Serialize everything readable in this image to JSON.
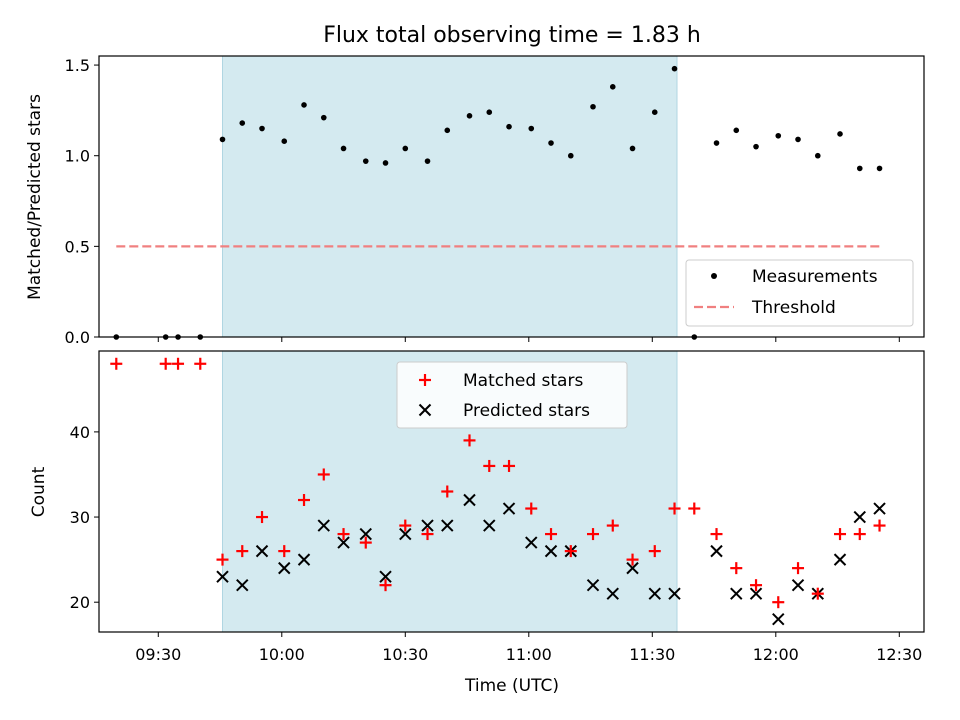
{
  "colors": {
    "shade": "#d4eaf0",
    "measurement": "#000000",
    "threshold": "#f08080",
    "matched": "#ff0000",
    "predicted": "#000000"
  },
  "chart_data": [
    {
      "type": "scatter",
      "title": "Flux total observing time = 1.83 h",
      "xlabel": "",
      "ylabel": "Matched/Predicted stars",
      "xlim": [
        9.26,
        12.6
      ],
      "ylim": [
        0.0,
        1.55
      ],
      "yticks": [
        0.0,
        0.5,
        1.0,
        1.5
      ],
      "ytick_labels": [
        "0.0",
        "0.5",
        "1.0",
        "1.5"
      ],
      "shaded_span": [
        9.76,
        11.6
      ],
      "threshold": {
        "name": "Threshold",
        "value": 0.5,
        "x_range": [
          9.33,
          12.42
        ]
      },
      "legend": {
        "location": "lower right",
        "entries": [
          "Measurements",
          "Threshold"
        ]
      },
      "series": [
        {
          "name": "Measurements",
          "x": [
            9.33,
            9.53,
            9.58,
            9.67,
            9.76,
            9.84,
            9.92,
            10.01,
            10.09,
            10.17,
            10.25,
            10.34,
            10.42,
            10.5,
            10.59,
            10.67,
            10.76,
            10.84,
            10.92,
            11.01,
            11.09,
            11.17,
            11.26,
            11.34,
            11.42,
            11.51,
            11.59,
            11.67,
            11.76,
            11.84,
            11.92,
            12.01,
            12.09,
            12.17,
            12.26,
            12.34,
            12.42
          ],
          "y": [
            0.0,
            0.0,
            0.0,
            0.0,
            1.09,
            1.18,
            1.15,
            1.08,
            1.28,
            1.21,
            1.04,
            0.97,
            0.96,
            1.04,
            0.97,
            1.14,
            1.22,
            1.24,
            1.16,
            1.15,
            1.07,
            1.0,
            1.27,
            1.38,
            1.04,
            1.24,
            1.48,
            0.0,
            1.07,
            1.14,
            1.05,
            1.11,
            1.09,
            1.0,
            1.12,
            0.93,
            0.93
          ]
        }
      ]
    },
    {
      "type": "scatter",
      "title": "",
      "xlabel": "Time (UTC)",
      "ylabel": "Count",
      "xlim": [
        9.26,
        12.6
      ],
      "ylim": [
        16.5,
        49.5
      ],
      "yticks": [
        20,
        30,
        40
      ],
      "ytick_labels": [
        "20",
        "30",
        "40"
      ],
      "xticks": [
        9.5,
        10.0,
        10.5,
        11.0,
        11.5,
        12.0,
        12.5
      ],
      "xtick_labels": [
        "09:30",
        "10:00",
        "10:30",
        "11:00",
        "11:30",
        "12:00",
        "12:30"
      ],
      "shaded_span": [
        9.76,
        11.6
      ],
      "legend": {
        "location": "upper center",
        "entries": [
          "Matched stars",
          "Predicted stars"
        ]
      },
      "series": [
        {
          "name": "Matched stars",
          "marker": "+",
          "x": [
            9.33,
            9.53,
            9.58,
            9.67,
            9.76,
            9.84,
            9.92,
            10.01,
            10.09,
            10.17,
            10.25,
            10.34,
            10.42,
            10.5,
            10.59,
            10.67,
            10.76,
            10.84,
            10.92,
            11.01,
            11.09,
            11.17,
            11.26,
            11.34,
            11.42,
            11.51,
            11.59,
            11.67,
            11.76,
            11.84,
            11.92,
            12.01,
            12.09,
            12.17,
            12.26,
            12.34,
            12.42
          ],
          "y": [
            48,
            48,
            48,
            48,
            25,
            26,
            30,
            26,
            32,
            35,
            28,
            27,
            22,
            29,
            28,
            33,
            39,
            36,
            36,
            31,
            28,
            26,
            28,
            29,
            25,
            26,
            31,
            31,
            28,
            24,
            22,
            20,
            24,
            21,
            28,
            28,
            29
          ]
        },
        {
          "name": "Predicted stars",
          "marker": "x",
          "x": [
            9.76,
            9.84,
            9.92,
            10.01,
            10.09,
            10.17,
            10.25,
            10.34,
            10.42,
            10.5,
            10.59,
            10.67,
            10.76,
            10.84,
            10.92,
            11.01,
            11.09,
            11.17,
            11.26,
            11.34,
            11.42,
            11.51,
            11.59,
            11.76,
            11.84,
            11.92,
            12.01,
            12.09,
            12.17,
            12.26,
            12.34,
            12.42
          ],
          "y": [
            23,
            22,
            26,
            24,
            25,
            29,
            27,
            28,
            23,
            28,
            29,
            29,
            32,
            29,
            31,
            27,
            26,
            26,
            22,
            21,
            24,
            21,
            21,
            26,
            21,
            21,
            18,
            22,
            21,
            25,
            30,
            31
          ]
        }
      ]
    }
  ]
}
